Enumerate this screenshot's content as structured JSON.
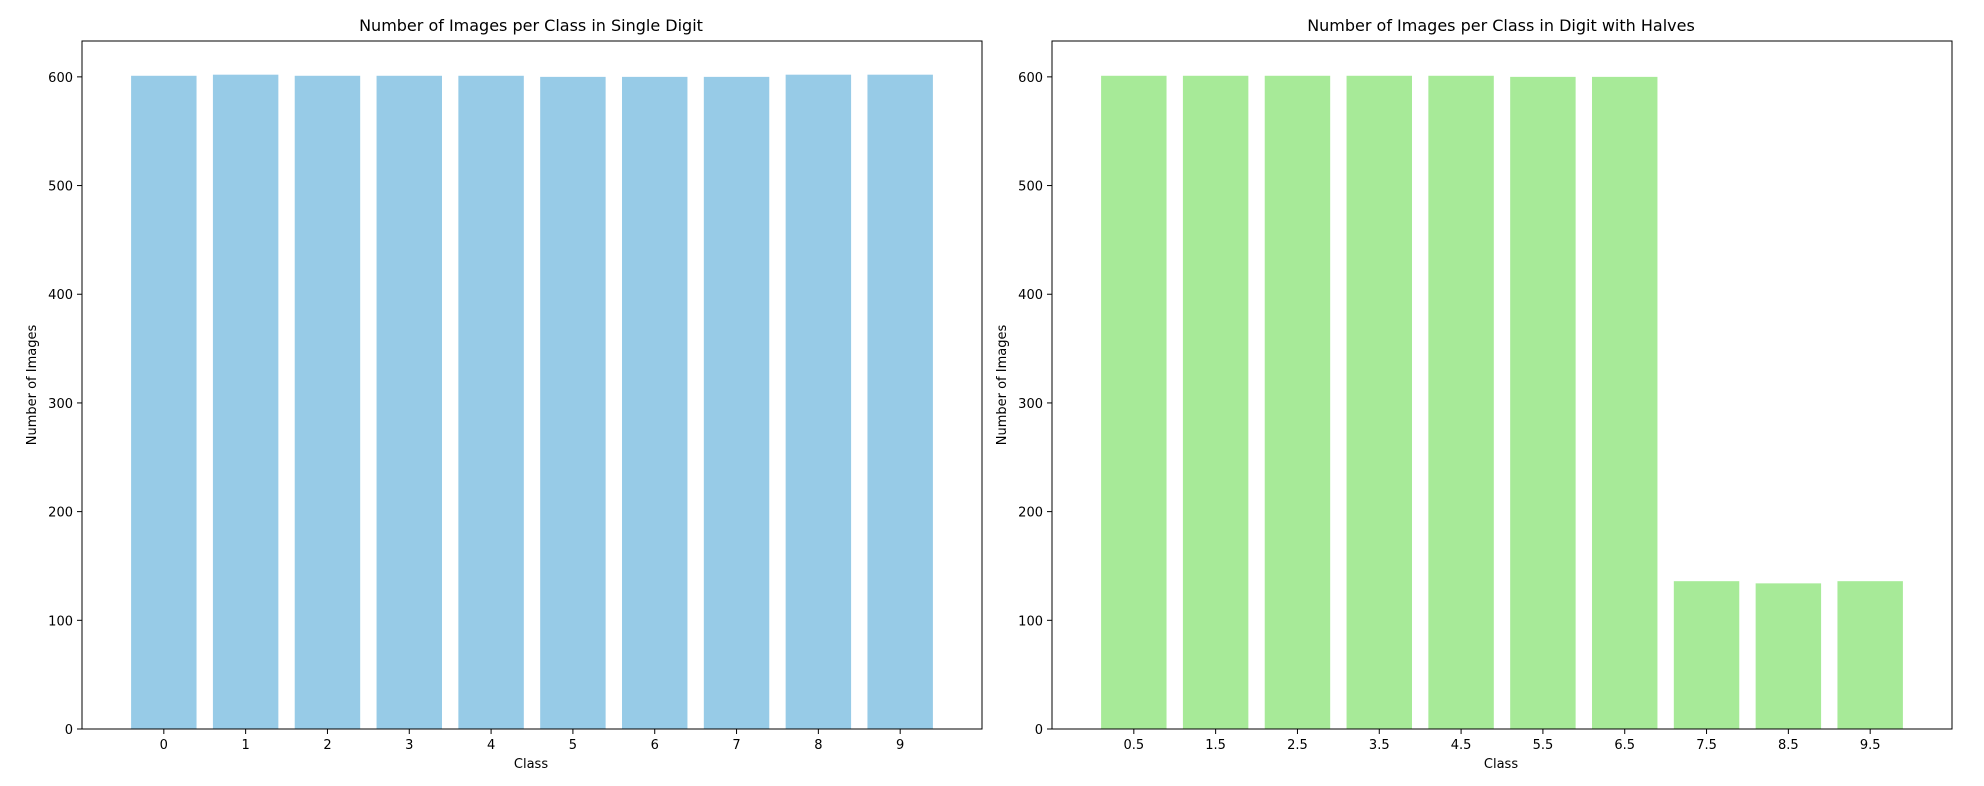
{
  "chart_data": [
    {
      "type": "bar",
      "title": "Number of Images per Class in Single Digit",
      "xlabel": "Class",
      "ylabel": "Number of Images",
      "categories": [
        "0",
        "1",
        "2",
        "3",
        "4",
        "5",
        "6",
        "7",
        "8",
        "9"
      ],
      "values": [
        601,
        602,
        601,
        601,
        601,
        600,
        600,
        600,
        602,
        602
      ],
      "ylim": [
        0,
        633
      ],
      "yticks": [
        0,
        100,
        200,
        300,
        400,
        500,
        600
      ],
      "color": "#97cbe7",
      "grid": false,
      "legend": "none"
    },
    {
      "type": "bar",
      "title": "Number of Images per Class in Digit with Halves",
      "xlabel": "Class",
      "ylabel": "Number of Images",
      "categories": [
        "0.5",
        "1.5",
        "2.5",
        "3.5",
        "4.5",
        "5.5",
        "6.5",
        "7.5",
        "8.5",
        "9.5"
      ],
      "values": [
        601,
        601,
        601,
        601,
        601,
        600,
        600,
        136,
        134,
        136
      ],
      "ylim": [
        0,
        633
      ],
      "yticks": [
        0,
        100,
        200,
        300,
        400,
        500,
        600
      ],
      "color": "#a7ea98",
      "grid": false,
      "legend": "none"
    }
  ]
}
